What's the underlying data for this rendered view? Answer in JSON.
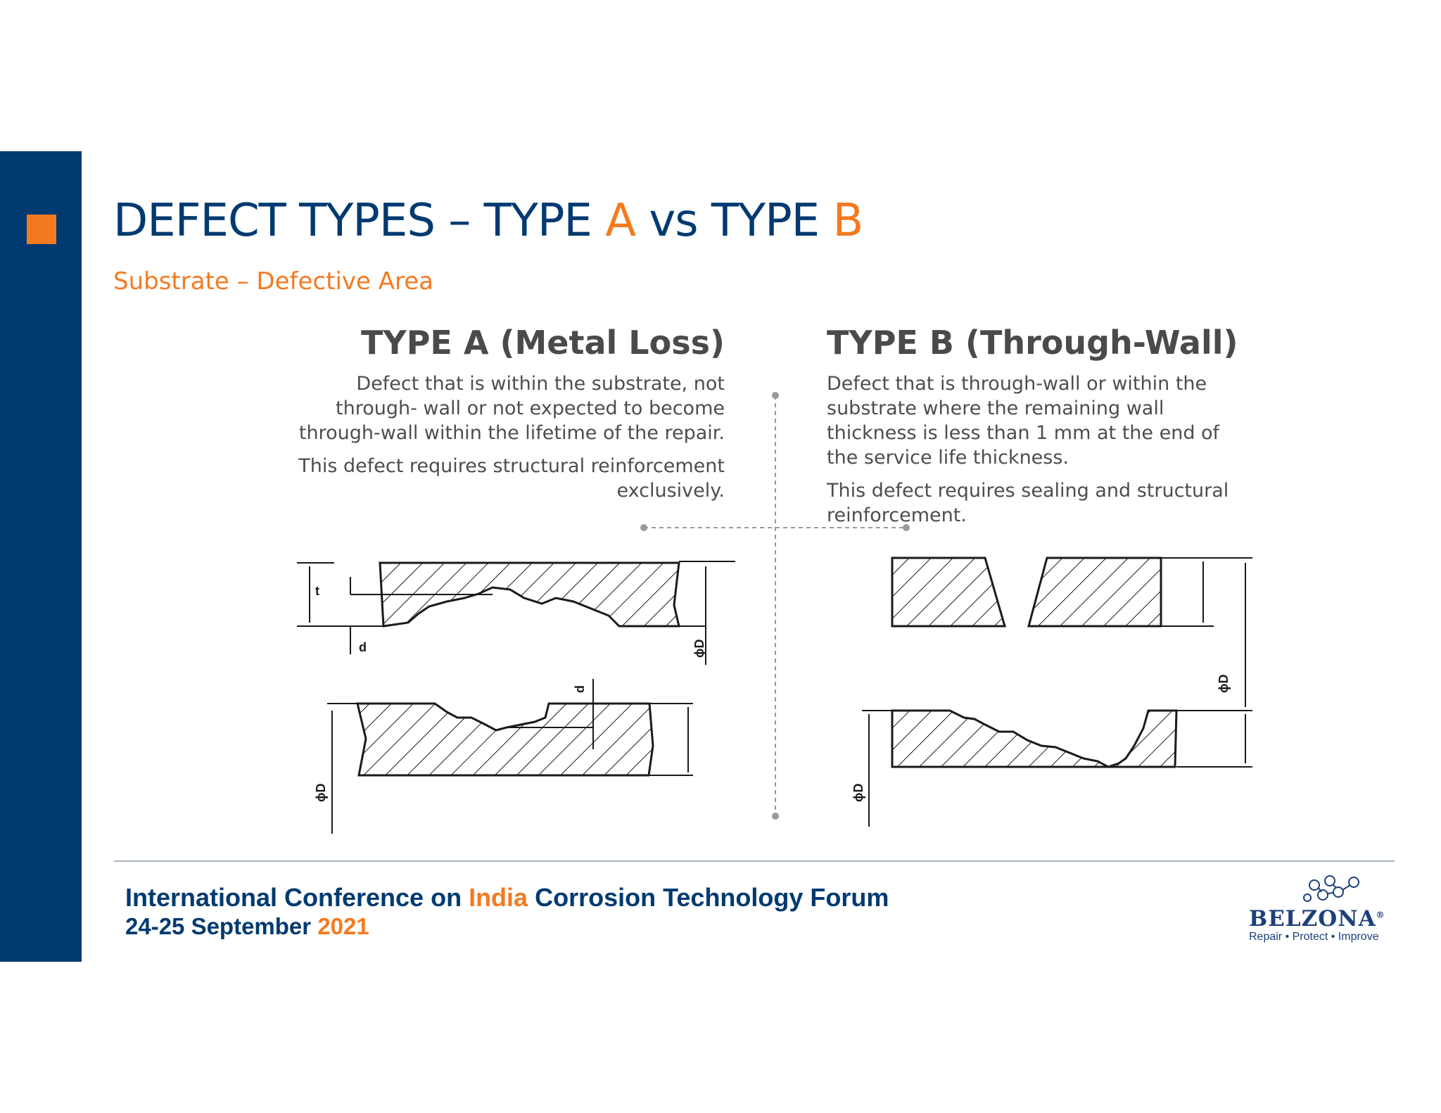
{
  "slide": {
    "title_prefix": "DEFECT TYPES – TYPE ",
    "title_a": "A",
    "title_mid": " vs TYPE ",
    "title_b": "B",
    "subtitle": "Substrate – Defective Area"
  },
  "type_a": {
    "heading": "TYPE A (Metal Loss)",
    "desc1": "Defect that is within the substrate, not through- wall or not expected to become through-wall within the lifetime of the repair.",
    "desc2": "This defect requires structural reinforcement exclusively."
  },
  "type_b": {
    "heading": "TYPE B (Through-Wall)",
    "desc1": "Defect that is through-wall or within the substrate where the remaining wall thickness is less than 1 mm at the end of the service life thickness.",
    "desc2": "This defect requires sealing and structural reinforcement."
  },
  "diagram_labels": {
    "t": "t",
    "d": "d",
    "phiD": "ϕD"
  },
  "footer": {
    "line1_a": "International Conference on ",
    "line1_b": "India",
    "line1_c": " Corrosion Technology Forum",
    "line2_a": "24-25 September ",
    "line2_b": "2021"
  },
  "logo": {
    "name": "BELZONA",
    "registered": "®",
    "tagline": "Repair • Protect • Improve"
  },
  "colors": {
    "navy": "#003a70",
    "orange": "#f47a20",
    "text_gray": "#4d4d4d"
  }
}
